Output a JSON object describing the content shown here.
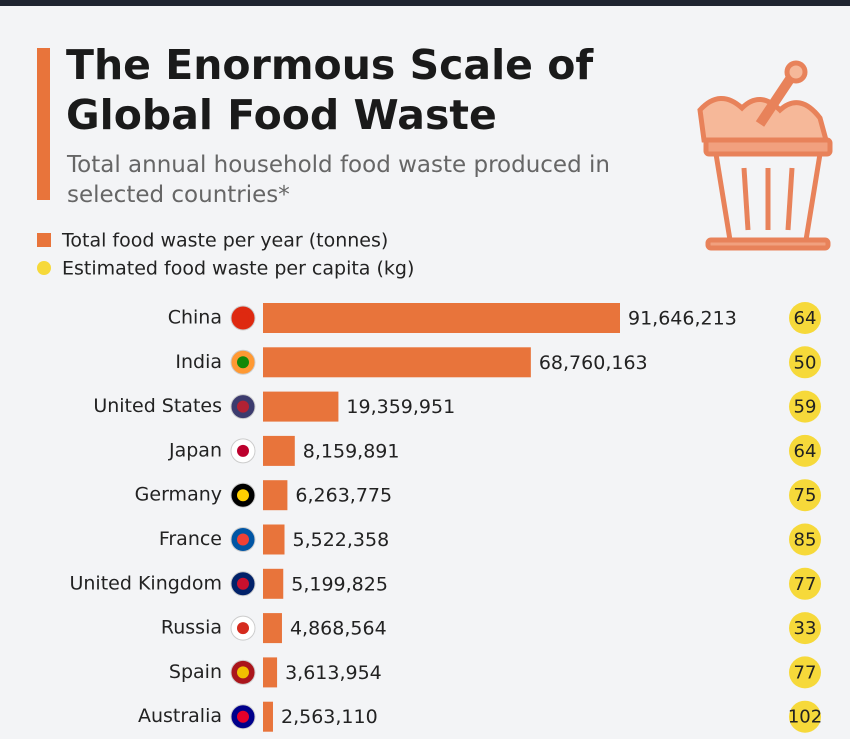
{
  "chart_data": {
    "type": "bar",
    "title": "The Enormous Scale of Global Food Waste",
    "subtitle": "Total annual household food waste produced in selected countries*",
    "categories": [
      "China",
      "India",
      "United States",
      "Japan",
      "Germany",
      "France",
      "United Kingdom",
      "Russia",
      "Spain",
      "Australia"
    ],
    "series": [
      {
        "name": "Total food waste per year (tonnes)",
        "color": "#e8743b",
        "values": [
          91646213,
          68760163,
          19359951,
          8159891,
          6263775,
          5522358,
          5199825,
          4868564,
          3613954,
          2563110
        ],
        "value_labels": [
          "91,646,213",
          "68,760,163",
          "19,359,951",
          "8,159,891",
          "6,263,775",
          "5,522,358",
          "5,199,825",
          "4,868,564",
          "3,613,954",
          "2,563,110"
        ]
      },
      {
        "name": "Estimated food waste per capita (kg)",
        "color": "#f6d93a",
        "values": [
          64,
          50,
          59,
          64,
          75,
          85,
          77,
          33,
          77,
          102
        ]
      }
    ]
  }
}
